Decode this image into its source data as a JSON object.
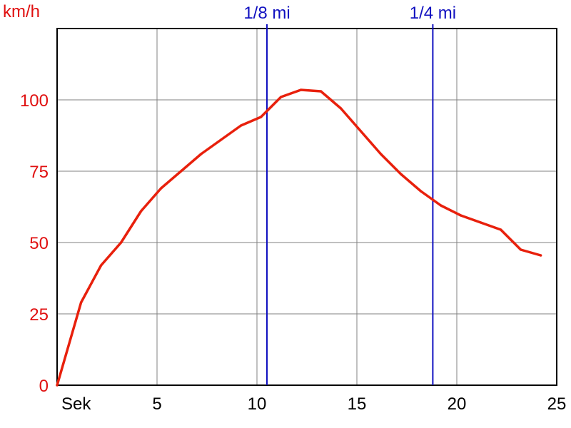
{
  "chart_data": {
    "type": "line",
    "ylabel": "km/h",
    "xlabel": "Sek",
    "xlim": [
      0,
      25
    ],
    "ylim": [
      0,
      125
    ],
    "x_ticks": [
      5,
      10,
      15,
      20,
      25
    ],
    "y_ticks": [
      0,
      25,
      50,
      75,
      100
    ],
    "grid": true,
    "markers": [
      {
        "label": "1/8 mi",
        "x": 10.5
      },
      {
        "label": "1/4 mi",
        "x": 18.8
      }
    ],
    "series": [
      {
        "x": [
          0,
          1.2,
          2.2,
          3.2,
          4.2,
          5.2,
          6.2,
          7.2,
          8.2,
          9.2,
          10.2,
          11.2,
          12.2,
          13.2,
          14.2,
          15.2,
          16.2,
          17.2,
          18.2,
          19.2,
          20.2,
          21.2,
          22.2,
          23.2,
          24.2
        ],
        "values": [
          0,
          29,
          42,
          50,
          61,
          69,
          75,
          81,
          86,
          91,
          94,
          101,
          103.5,
          103,
          97,
          89,
          81,
          74,
          68,
          63,
          59.5,
          57,
          54.5,
          47.5,
          45.5
        ]
      }
    ],
    "colors": {
      "line": "#e8200c",
      "axis_text": "#e01010",
      "marker": "#1010c0",
      "grid": "#808080"
    }
  }
}
